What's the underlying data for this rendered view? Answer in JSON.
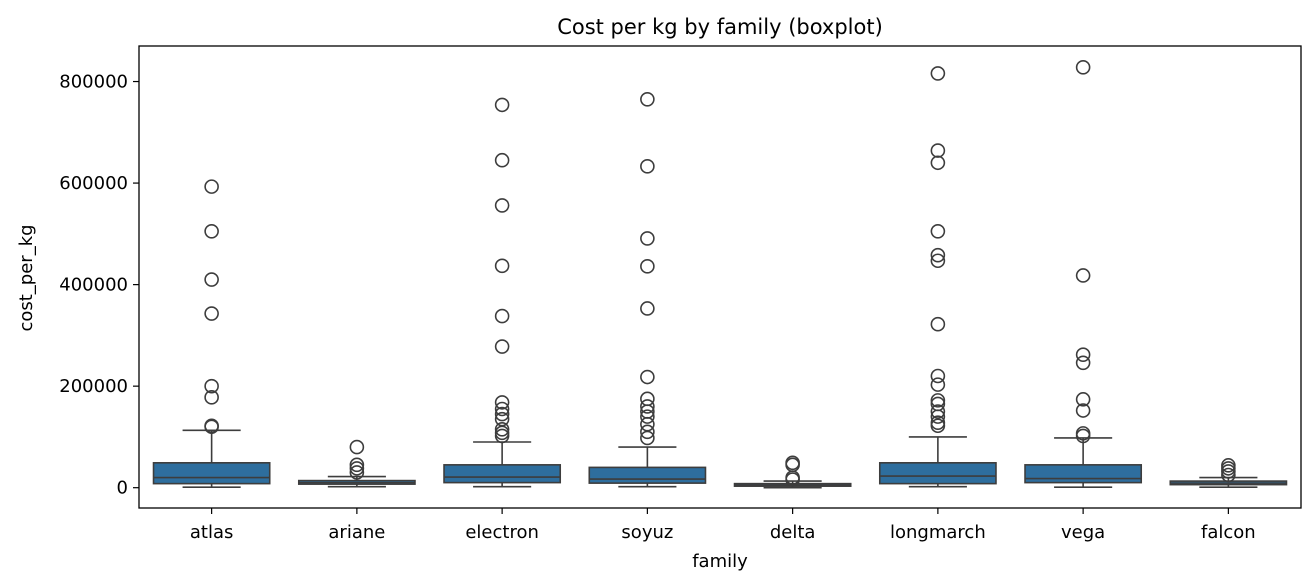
{
  "chart_data": {
    "type": "boxplot",
    "title": "Cost per kg by family (boxplot)",
    "xlabel": "family",
    "ylabel": "cost_per_kg",
    "ylim": [
      -40000,
      870000
    ],
    "yticks": [
      0,
      200000,
      400000,
      600000,
      800000
    ],
    "ytick_labels": [
      "0",
      "200000",
      "400000",
      "600000",
      "800000"
    ],
    "grid": false,
    "colors": {
      "box": "#2e6e9e",
      "line": "#3d3d3d",
      "axis": "#000000"
    },
    "categories": [
      "atlas",
      "ariane",
      "electron",
      "soyuz",
      "delta",
      "longmarch",
      "vega",
      "falcon"
    ],
    "boxes": [
      {
        "category": "atlas",
        "whisker_low": 1000,
        "q1": 8000,
        "median": 20000,
        "q3": 49000,
        "whisker_high": 113000,
        "outliers": [
          120000,
          122000,
          178000,
          200000,
          343000,
          410000,
          505000,
          593000
        ]
      },
      {
        "category": "ariane",
        "whisker_low": 2000,
        "q1": 7000,
        "median": 10000,
        "q3": 14000,
        "whisker_high": 22000,
        "outliers": [
          30000,
          38000,
          45000,
          80000
        ]
      },
      {
        "category": "electron",
        "whisker_low": 2000,
        "q1": 10000,
        "median": 21000,
        "q3": 45000,
        "whisker_high": 90000,
        "outliers": [
          102000,
          108000,
          115000,
          135000,
          145000,
          155000,
          168000,
          278000,
          338000,
          437000,
          556000,
          645000,
          754000
        ]
      },
      {
        "category": "soyuz",
        "whisker_low": 2000,
        "q1": 9000,
        "median": 17000,
        "q3": 40000,
        "whisker_high": 80000,
        "outliers": [
          98000,
          110000,
          125000,
          140000,
          150000,
          160000,
          175000,
          218000,
          353000,
          436000,
          491000,
          633000,
          765000
        ]
      },
      {
        "category": "delta",
        "whisker_low": 0,
        "q1": 3000,
        "median": 5000,
        "q3": 8000,
        "whisker_high": 13000,
        "outliers": [
          16000,
          20000,
          45000,
          49000
        ]
      },
      {
        "category": "longmarch",
        "whisker_low": 2000,
        "q1": 8000,
        "median": 23000,
        "q3": 49000,
        "whisker_high": 100000,
        "outliers": [
          122000,
          128000,
          140000,
          150000,
          165000,
          172000,
          203000,
          220000,
          322000,
          447000,
          458000,
          505000,
          640000,
          664000,
          816000
        ]
      },
      {
        "category": "vega",
        "whisker_low": 1000,
        "q1": 10000,
        "median": 18000,
        "q3": 45000,
        "whisker_high": 98000,
        "outliers": [
          102000,
          107000,
          152000,
          174000,
          246000,
          262000,
          418000,
          828000
        ]
      },
      {
        "category": "falcon",
        "whisker_low": 1000,
        "q1": 6000,
        "median": 9000,
        "q3": 13000,
        "whisker_high": 20000,
        "outliers": [
          25000,
          32000,
          38000,
          44000
        ]
      }
    ]
  }
}
